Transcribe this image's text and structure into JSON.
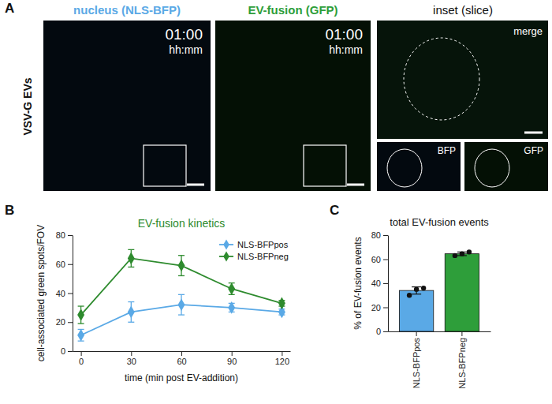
{
  "figure": {
    "panel_labels": [
      "A",
      "B",
      "C"
    ],
    "row_label": "VSV-G EVs",
    "images": [
      {
        "title": "nucleus (NLS-BFP)",
        "title_color": "#5aa9e6",
        "time": "01:00",
        "time_unit": "hh:mm"
      },
      {
        "title": "EV-fusion (GFP)",
        "title_color": "#2e9e3a",
        "time": "01:00",
        "time_unit": "hh:mm"
      }
    ],
    "inset": {
      "title": "inset (slice)",
      "merge": "merge",
      "channels": [
        "BFP",
        "GFP"
      ]
    }
  },
  "chart_data": [
    {
      "type": "line",
      "title": "EV-fusion kinetics",
      "x_label": "time (min post EV-addition)",
      "y_label": "cell-associated green spots/FOV",
      "x": [
        0,
        30,
        60,
        90,
        120
      ],
      "xlim": [
        -5,
        125
      ],
      "xticks": [
        0,
        30,
        60,
        90,
        120
      ],
      "ylim": [
        0,
        80
      ],
      "yticks": [
        0,
        20,
        40,
        60,
        80
      ],
      "legend": "top-right",
      "series": [
        {
          "name": "NLS-BFPpos",
          "color": "#5aa9e6",
          "marker": "diamond",
          "values": [
            11,
            27,
            32,
            30,
            27
          ],
          "errors": [
            4,
            7,
            7,
            3,
            2
          ]
        },
        {
          "name": "NLS-BFPneg",
          "color": "#2e8b2e",
          "marker": "diamond",
          "values": [
            25,
            64,
            59,
            43,
            33
          ],
          "errors": [
            6,
            6,
            7,
            4,
            2
          ]
        }
      ]
    },
    {
      "type": "bar",
      "title": "total EV-fusion events",
      "y_label": "% of EV-fusion events",
      "categories": [
        "NLS-BFPpos",
        "NLS-BFPneg"
      ],
      "values": [
        34,
        64.5
      ],
      "errors": [
        3,
        1.5
      ],
      "points": [
        [
          30,
          35,
          36
        ],
        [
          63,
          64.5,
          66
        ]
      ],
      "colors": [
        "#5aa9e6",
        "#2e9e3a"
      ],
      "ylim": [
        0,
        80
      ],
      "yticks": [
        0,
        20,
        40,
        60,
        80
      ]
    }
  ]
}
